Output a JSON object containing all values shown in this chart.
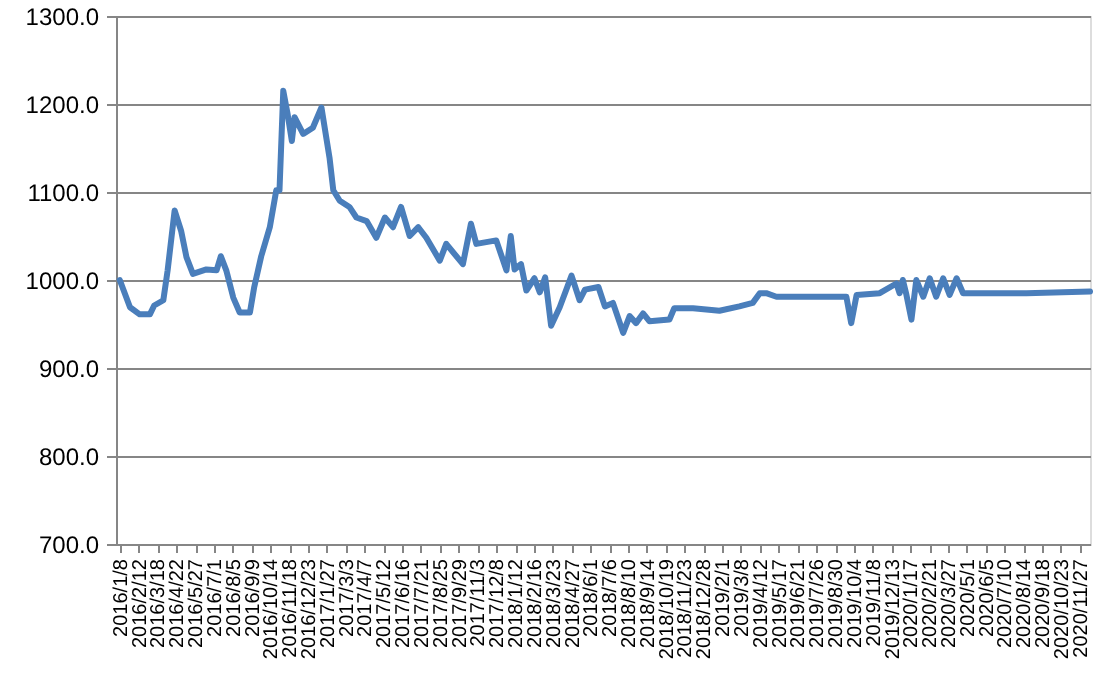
{
  "chart_data": {
    "type": "line",
    "x": [
      "2016-01-08",
      "2016-01-27",
      "2016-02-14",
      "2016-03-04",
      "2016-03-12",
      "2016-03-29",
      "2016-04-06",
      "2016-04-19",
      "2016-05-01",
      "2016-05-11",
      "2016-05-23",
      "2016-06-17",
      "2016-07-06",
      "2016-07-14",
      "2016-07-24",
      "2016-08-06",
      "2016-08-18",
      "2016-09-06",
      "2016-09-14",
      "2016-09-27",
      "2016-10-13",
      "2016-10-25",
      "2016-10-31",
      "2016-11-07",
      "2016-11-15",
      "2016-11-23",
      "2016-11-28",
      "2016-12-14",
      "2017-01-01",
      "2017-01-17",
      "2017-02-01",
      "2017-02-08",
      "2017-02-20",
      "2017-03-10",
      "2017-03-23",
      "2017-04-11",
      "2017-04-29",
      "2017-05-15",
      "2017-05-30",
      "2017-06-14",
      "2017-06-30",
      "2017-07-16",
      "2017-07-31",
      "2017-08-25",
      "2017-09-06",
      "2017-10-07",
      "2017-10-22",
      "2017-11-01",
      "2017-12-08",
      "2017-12-27",
      "2018-01-04",
      "2018-01-11",
      "2018-01-23",
      "2018-02-02",
      "2018-02-17",
      "2018-02-27",
      "2018-03-09",
      "2018-03-20",
      "2018-04-05",
      "2018-04-27",
      "2018-05-12",
      "2018-05-22",
      "2018-06-16",
      "2018-06-28",
      "2018-07-13",
      "2018-08-01",
      "2018-08-13",
      "2018-08-25",
      "2018-09-07",
      "2018-09-19",
      "2018-10-26",
      "2018-11-04",
      "2018-12-09",
      "2019-01-27",
      "2019-03-05",
      "2019-03-30",
      "2019-04-12",
      "2019-04-24",
      "2019-05-13",
      "2019-09-20",
      "2019-09-29",
      "2019-10-09",
      "2019-11-21",
      "2019-12-22",
      "2019-12-28",
      "2020-01-03",
      "2020-01-09",
      "2020-01-19",
      "2020-01-28",
      "2020-02-10",
      "2020-02-22",
      "2020-03-05",
      "2020-03-18",
      "2020-03-30",
      "2020-04-12",
      "2020-04-24",
      "2020-08-20",
      "2020-12-16"
    ],
    "series": [
      {
        "color": "#4a7ebb",
        "values": [
          1000,
          969,
          961,
          961,
          971,
          977,
          1011,
          1079,
          1056,
          1026,
          1007,
          1012,
          1011,
          1027,
          1011,
          980,
          963,
          963,
          992,
          1027,
          1060,
          1102,
          1102,
          1215,
          1189,
          1158,
          1185,
          1166,
          1173,
          1196,
          1139,
          1102,
          1090,
          1083,
          1071,
          1067,
          1048,
          1071,
          1060,
          1083,
          1050,
          1060,
          1048,
          1022,
          1041,
          1018,
          1064,
          1041,
          1045,
          1011,
          1050,
          1012,
          1018,
          988,
          1002,
          986,
          1003,
          948,
          969,
          1005,
          977,
          989,
          992,
          970,
          974,
          940,
          959,
          951,
          962,
          953,
          955,
          968,
          968,
          965,
          970,
          974,
          985,
          985,
          981,
          981,
          951,
          983,
          985,
          996,
          985,
          1000,
          985,
          955,
          1000,
          981,
          1002,
          981,
          1002,
          983,
          1002,
          985,
          985,
          987
        ]
      }
    ],
    "xlim": [
      "2016-01-01",
      "2020-12-16"
    ],
    "xticks": [
      {
        "value": "2016-01-08",
        "label": "2016/1/8"
      },
      {
        "value": "2016-02-12",
        "label": "2016/2/12"
      },
      {
        "value": "2016-03-18",
        "label": "2016/3/18"
      },
      {
        "value": "2016-04-22",
        "label": "2016/4/22"
      },
      {
        "value": "2016-05-27",
        "label": "2016/5/27"
      },
      {
        "value": "2016-07-01",
        "label": "2016/7/1"
      },
      {
        "value": "2016-08-05",
        "label": "2016/8/5"
      },
      {
        "value": "2016-09-09",
        "label": "2016/9/9"
      },
      {
        "value": "2016-10-14",
        "label": "2016/10/14"
      },
      {
        "value": "2016-11-18",
        "label": "2016/11/18"
      },
      {
        "value": "2016-12-23",
        "label": "2016/12/23"
      },
      {
        "value": "2017-01-27",
        "label": "2017/1/27"
      },
      {
        "value": "2017-03-03",
        "label": "2017/3/3"
      },
      {
        "value": "2017-04-07",
        "label": "2017/4/7"
      },
      {
        "value": "2017-05-12",
        "label": "2017/5/12"
      },
      {
        "value": "2017-06-16",
        "label": "2017/6/16"
      },
      {
        "value": "2017-07-21",
        "label": "2017/7/21"
      },
      {
        "value": "2017-08-25",
        "label": "2017/8/25"
      },
      {
        "value": "2017-09-29",
        "label": "2017/9/29"
      },
      {
        "value": "2017-11-03",
        "label": "2017/11/3"
      },
      {
        "value": "2017-12-08",
        "label": "2017/12/8"
      },
      {
        "value": "2018-01-12",
        "label": "2018/1/12"
      },
      {
        "value": "2018-02-16",
        "label": "2018/2/16"
      },
      {
        "value": "2018-03-23",
        "label": "2018/3/23"
      },
      {
        "value": "2018-04-27",
        "label": "2018/4/27"
      },
      {
        "value": "2018-06-01",
        "label": "2018/6/1"
      },
      {
        "value": "2018-07-06",
        "label": "2018/7/6"
      },
      {
        "value": "2018-08-10",
        "label": "2018/8/10"
      },
      {
        "value": "2018-09-14",
        "label": "2018/9/14"
      },
      {
        "value": "2018-10-19",
        "label": "2018/10/19"
      },
      {
        "value": "2018-11-23",
        "label": "2018/11/23"
      },
      {
        "value": "2018-12-28",
        "label": "2018/12/28"
      },
      {
        "value": "2019-02-01",
        "label": "2019/2/1"
      },
      {
        "value": "2019-03-08",
        "label": "2019/3/8"
      },
      {
        "value": "2019-04-12",
        "label": "2019/4/12"
      },
      {
        "value": "2019-05-17",
        "label": "2019/5/17"
      },
      {
        "value": "2019-06-21",
        "label": "2019/6/21"
      },
      {
        "value": "2019-07-26",
        "label": "2019/7/26"
      },
      {
        "value": "2019-08-30",
        "label": "2019/8/30"
      },
      {
        "value": "2019-10-04",
        "label": "2019/10/4"
      },
      {
        "value": "2019-11-08",
        "label": "2019/11/8"
      },
      {
        "value": "2019-12-13",
        "label": "2019/12/13"
      },
      {
        "value": "2020-01-17",
        "label": "2020/1/17"
      },
      {
        "value": "2020-02-21",
        "label": "2020/2/21"
      },
      {
        "value": "2020-03-27",
        "label": "2020/3/27"
      },
      {
        "value": "2020-05-01",
        "label": "2020/5/1"
      },
      {
        "value": "2020-06-05",
        "label": "2020/6/5"
      },
      {
        "value": "2020-07-10",
        "label": "2020/7/10"
      },
      {
        "value": "2020-08-14",
        "label": "2020/8/14"
      },
      {
        "value": "2020-09-18",
        "label": "2020/9/18"
      },
      {
        "value": "2020-10-23",
        "label": "2020/10/23"
      },
      {
        "value": "2020-11-27",
        "label": "2020/11/27"
      }
    ],
    "ylim": [
      700,
      1300
    ],
    "yticks": [
      {
        "value": 700,
        "label": "700.0"
      },
      {
        "value": 800,
        "label": "800.0"
      },
      {
        "value": 900,
        "label": "900.0"
      },
      {
        "value": 1000,
        "label": "1000.0"
      },
      {
        "value": 1100,
        "label": "1100.0"
      },
      {
        "value": 1200,
        "label": "1200.0"
      },
      {
        "value": 1300,
        "label": "1300.0"
      }
    ],
    "grid": "y",
    "marker": "none",
    "line_style": "solid"
  }
}
